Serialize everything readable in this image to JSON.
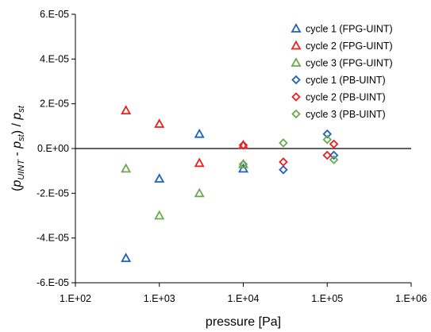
{
  "chart_data": {
    "type": "scatter",
    "xlabel": "pressure [Pa]",
    "ylabel": {
      "open": "(",
      "p1": "p",
      "p1_sub": "UINT",
      "minus": " - ",
      "p2": "p",
      "p2_sub": "st",
      "close": ")",
      "slash": " / ",
      "p3": "p",
      "p3_sub": "st"
    },
    "xscale": "log",
    "xlim": [
      100,
      1000000
    ],
    "ylim": [
      -6e-05,
      6e-05
    ],
    "x_ticks": [
      100,
      1000,
      10000,
      100000,
      1000000
    ],
    "x_tick_labels": [
      "1.E+02",
      "1.E+03",
      "1.E+04",
      "1.E+05",
      "1.E+06"
    ],
    "y_ticks": [
      -6e-05,
      -4e-05,
      -2e-05,
      0,
      2e-05,
      4e-05,
      6e-05
    ],
    "y_tick_labels": [
      "-6.E-05",
      "-4.E-05",
      "-2.E-05",
      "0.E+00",
      "2.E-05",
      "4.E-05",
      "6.E-05"
    ],
    "reference_line_y": 0,
    "grid": false,
    "legend_position": "top-right",
    "series": [
      {
        "name": "cycle 1 (FPG-UINT)",
        "marker": "triangle",
        "color": "#1f5fbf",
        "points": [
          [
            400,
            -4.9e-05
          ],
          [
            1000,
            -1.35e-05
          ],
          [
            3000,
            6.5e-06
          ],
          [
            10000,
            -9e-06
          ]
        ]
      },
      {
        "name": "cycle 2 (FPG-UINT)",
        "marker": "triangle",
        "color": "#e8201f",
        "points": [
          [
            400,
            1.7e-05
          ],
          [
            1000,
            1.1e-05
          ],
          [
            3000,
            -6.5e-06
          ],
          [
            10000,
            1.5e-06
          ]
        ]
      },
      {
        "name": "cycle 3 (FPG-UINT)",
        "marker": "triangle",
        "color": "#6aa84f",
        "points": [
          [
            400,
            -9e-06
          ],
          [
            1000,
            -3e-05
          ],
          [
            3000,
            -2e-05
          ],
          [
            10000,
            -7e-06
          ]
        ]
      },
      {
        "name": "cycle 1 (PB-UINT)",
        "marker": "diamond",
        "color": "#1f5fbf",
        "points": [
          [
            30000,
            -9.5e-06
          ],
          [
            100000,
            6.5e-06
          ],
          [
            120000,
            -3e-06
          ]
        ]
      },
      {
        "name": "cycle 2 (PB-UINT)",
        "marker": "diamond",
        "color": "#e8201f",
        "points": [
          [
            10000,
            1.5e-06
          ],
          [
            30000,
            -6e-06
          ],
          [
            100000,
            -3e-06
          ],
          [
            120000,
            2e-06
          ]
        ]
      },
      {
        "name": "cycle 3 (PB-UINT)",
        "marker": "diamond",
        "color": "#6aa84f",
        "points": [
          [
            10000,
            -7e-06
          ],
          [
            30000,
            2.5e-06
          ],
          [
            100000,
            4e-06
          ],
          [
            120000,
            -5e-06
          ]
        ]
      }
    ]
  }
}
